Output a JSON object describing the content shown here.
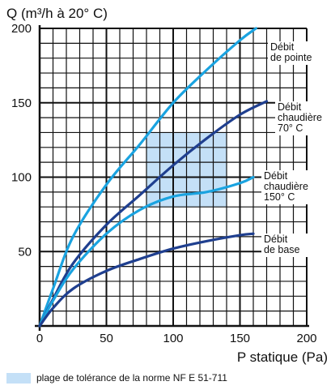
{
  "chart_data": {
    "type": "line",
    "title": "",
    "ylabel": "Q (m³/h à 20° C)",
    "xlabel": "P statique (Pa)",
    "xlim": [
      0,
      200
    ],
    "ylim": [
      0,
      200
    ],
    "x_ticks": [
      0,
      50,
      100,
      150,
      200
    ],
    "y_ticks": [
      50,
      100,
      150,
      200
    ],
    "grid": true,
    "tolerance_zone": {
      "x": [
        80,
        140
      ],
      "y": [
        80,
        130
      ],
      "color": "#c4e0f7",
      "legend": "plage de tolérance de la norme NF E 51-711"
    },
    "series": [
      {
        "name": "Débit de pointe",
        "label_lines": [
          "Débit",
          "de pointe"
        ],
        "color": "#1aa3e0",
        "points": [
          [
            0,
            0
          ],
          [
            10,
            25
          ],
          [
            25,
            60
          ],
          [
            50,
            95
          ],
          [
            75,
            122
          ],
          [
            100,
            150
          ],
          [
            125,
            172
          ],
          [
            150,
            192
          ],
          [
            162,
            200
          ]
        ]
      },
      {
        "name": "Débit chaudière 70° C",
        "label_lines": [
          "Débit",
          "chaudière",
          "70° C"
        ],
        "color": "#1f3f8f",
        "points": [
          [
            0,
            0
          ],
          [
            10,
            18
          ],
          [
            25,
            42
          ],
          [
            50,
            68
          ],
          [
            75,
            88
          ],
          [
            100,
            108
          ],
          [
            125,
            126
          ],
          [
            150,
            142
          ],
          [
            170,
            151
          ]
        ]
      },
      {
        "name": "Débit chaudière 150° C",
        "label_lines": [
          "Débit",
          "chaudière",
          "150° C"
        ],
        "color": "#1aa3e0",
        "points": [
          [
            0,
            0
          ],
          [
            10,
            17
          ],
          [
            25,
            38
          ],
          [
            50,
            62
          ],
          [
            75,
            78
          ],
          [
            100,
            87
          ],
          [
            125,
            90
          ],
          [
            150,
            96
          ],
          [
            160,
            100
          ]
        ]
      },
      {
        "name": "Débit de base",
        "label_lines": [
          "Débit",
          "de base"
        ],
        "color": "#1f3f8f",
        "points": [
          [
            0,
            0
          ],
          [
            10,
            12
          ],
          [
            25,
            25
          ],
          [
            50,
            37
          ],
          [
            75,
            45
          ],
          [
            100,
            52
          ],
          [
            125,
            57
          ],
          [
            150,
            61
          ],
          [
            160,
            62
          ]
        ]
      }
    ]
  }
}
